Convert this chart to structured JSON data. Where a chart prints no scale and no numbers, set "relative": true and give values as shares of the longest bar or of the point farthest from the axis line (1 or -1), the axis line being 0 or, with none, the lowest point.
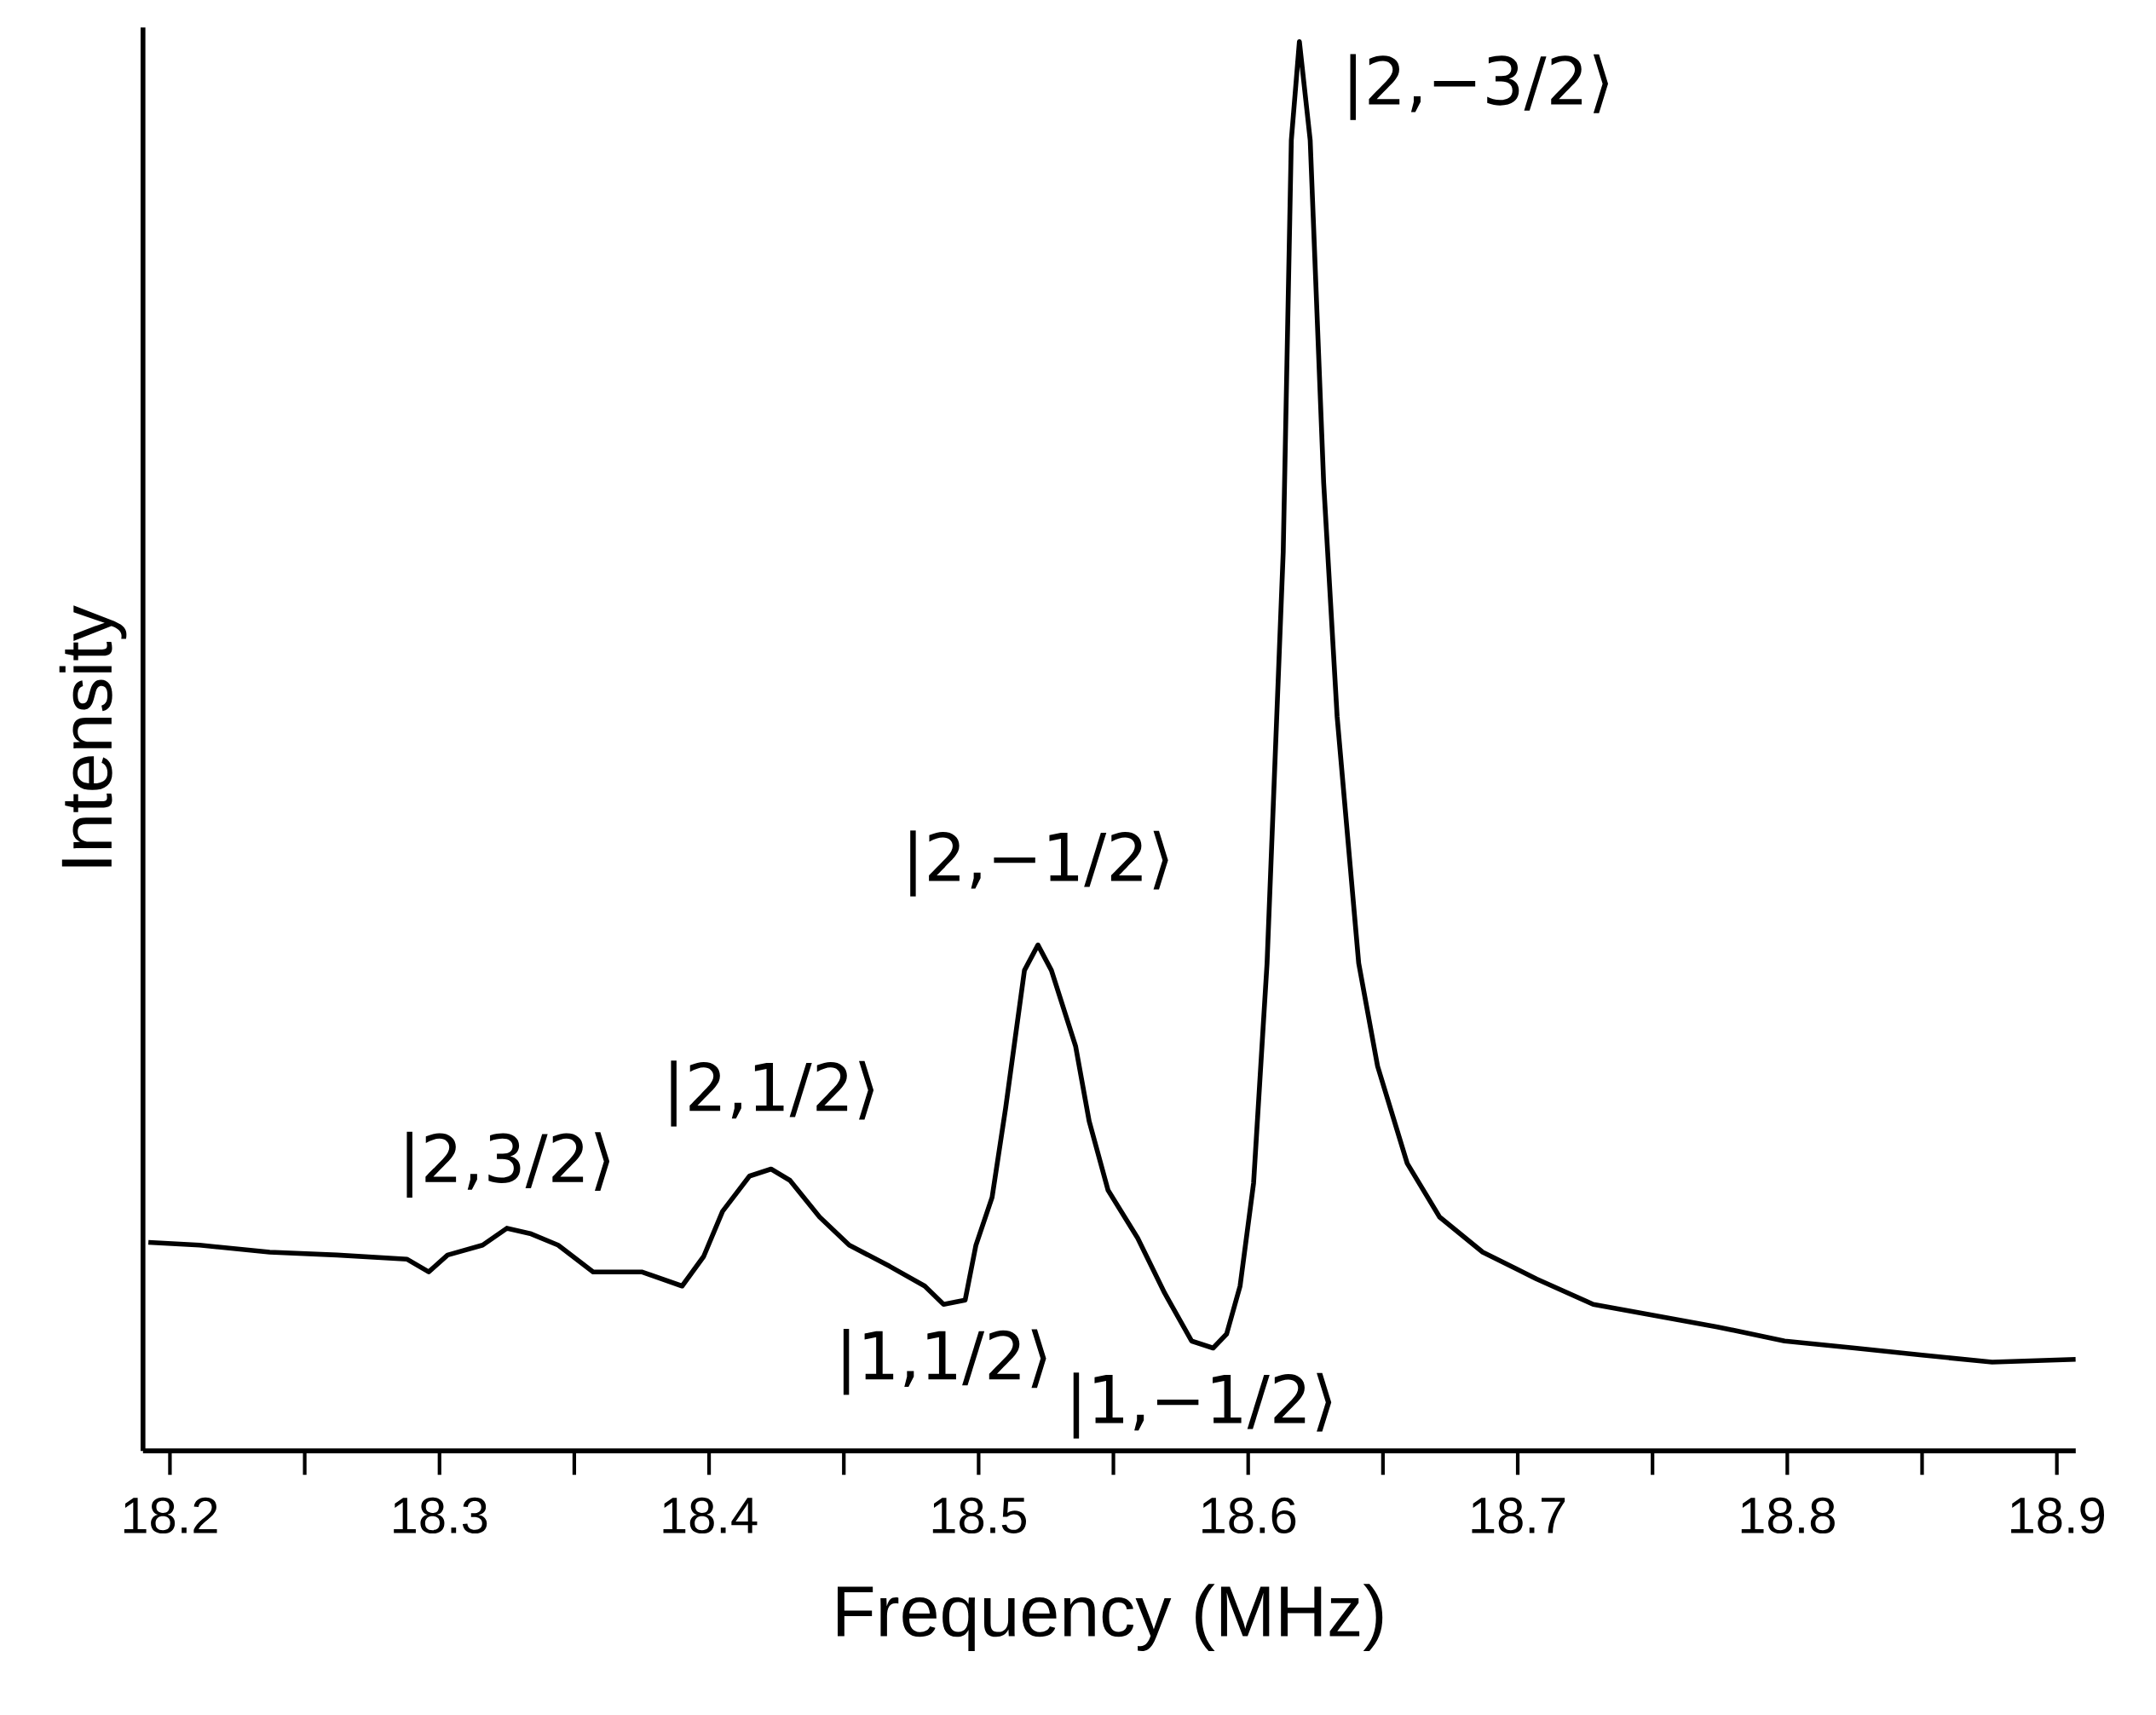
{
  "chart_data": {
    "type": "line",
    "relative": true,
    "xlabel": "Frequency (MHz)",
    "ylabel": "Intensity",
    "color": "#000000",
    "marker": "none",
    "line_style": "solid",
    "grid": false,
    "xlim": [
      18.19,
      18.907
    ],
    "xticks": [
      18.2,
      18.3,
      18.4,
      18.5,
      18.6,
      18.7,
      18.8,
      18.9
    ],
    "x": [
      18.192,
      18.211,
      18.237,
      18.262,
      18.288,
      18.296,
      18.303,
      18.316,
      18.325,
      18.334,
      18.344,
      18.357,
      18.375,
      18.39,
      18.398,
      18.405,
      18.415,
      18.423,
      18.43,
      18.441,
      18.452,
      18.467,
      18.48,
      18.487,
      18.495,
      18.499,
      18.505,
      18.51,
      18.517,
      18.522,
      18.527,
      18.536,
      18.541,
      18.548,
      18.559,
      18.569,
      18.579,
      18.587,
      18.592,
      18.597,
      18.602,
      18.607,
      18.613,
      18.616,
      18.619,
      18.623,
      18.628,
      18.633,
      18.641,
      18.648,
      18.659,
      18.671,
      18.687,
      18.707,
      18.728,
      18.748,
      18.774,
      18.799,
      18.825,
      18.85,
      18.876,
      18.907
    ],
    "values": [
      0.148,
      0.146,
      0.141,
      0.139,
      0.136,
      0.127,
      0.139,
      0.146,
      0.158,
      0.154,
      0.146,
      0.127,
      0.127,
      0.117,
      0.138,
      0.17,
      0.195,
      0.2,
      0.192,
      0.166,
      0.146,
      0.131,
      0.117,
      0.104,
      0.107,
      0.146,
      0.18,
      0.243,
      0.341,
      0.359,
      0.341,
      0.287,
      0.234,
      0.185,
      0.151,
      0.112,
      0.078,
      0.073,
      0.083,
      0.117,
      0.19,
      0.346,
      0.638,
      0.93,
      1.0,
      0.93,
      0.687,
      0.521,
      0.346,
      0.273,
      0.204,
      0.166,
      0.141,
      0.122,
      0.104,
      0.097,
      0.088,
      0.078,
      0.073,
      0.068,
      0.063,
      0.065
    ],
    "annotations": [
      {
        "text": "|2,3/2⟩",
        "x": 18.325,
        "y": 0.158
      },
      {
        "text": "|2,1/2⟩",
        "x": 18.423,
        "y": 0.2
      },
      {
        "text": "|2,−1/2⟩",
        "x": 18.522,
        "y": 0.359
      },
      {
        "text": "|2,−3/2⟩",
        "x": 18.619,
        "y": 1.0
      },
      {
        "text": "|1,1/2⟩",
        "x": 18.487,
        "y": 0.104
      },
      {
        "text": "|1,−1/2⟩",
        "x": 18.587,
        "y": 0.073
      }
    ]
  }
}
